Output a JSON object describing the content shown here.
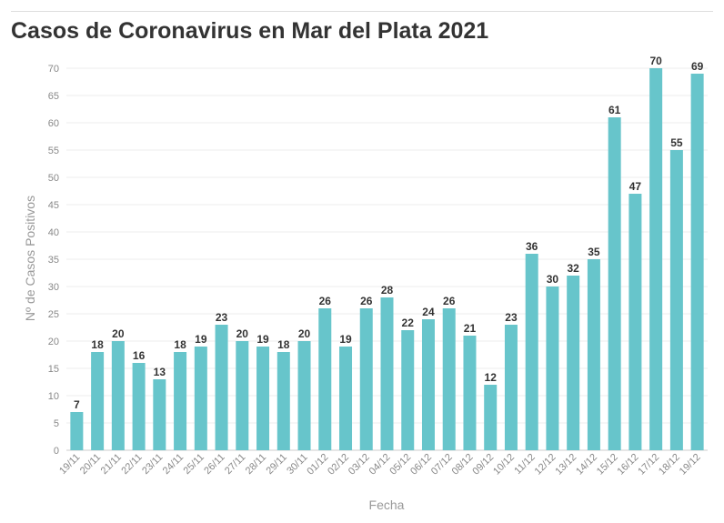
{
  "chart_data": {
    "type": "bar",
    "title": "Casos de Coronavirus en Mar del Plata 2021",
    "xlabel": "Fecha",
    "ylabel": "Nº de Casos Positivos",
    "ylim": [
      0,
      70
    ],
    "yticks": [
      0,
      5,
      10,
      15,
      20,
      25,
      30,
      35,
      40,
      45,
      50,
      55,
      60,
      65,
      70
    ],
    "grid": true,
    "bar_color": "#67c5cb",
    "categories": [
      "19/11",
      "20/11",
      "21/11",
      "22/11",
      "23/11",
      "24/11",
      "25/11",
      "26/11",
      "27/11",
      "28/11",
      "29/11",
      "30/11",
      "01/12",
      "02/12",
      "03/12",
      "04/12",
      "05/12",
      "06/12",
      "07/12",
      "08/12",
      "09/12",
      "10/12",
      "11/12",
      "12/12",
      "13/12",
      "14/12",
      "15/12",
      "16/12",
      "17/12",
      "18/12",
      "19/12"
    ],
    "values": [
      7,
      18,
      20,
      16,
      13,
      18,
      19,
      23,
      20,
      19,
      18,
      20,
      26,
      19,
      26,
      28,
      22,
      24,
      26,
      21,
      12,
      23,
      36,
      30,
      32,
      35,
      61,
      47,
      70,
      55,
      69
    ]
  }
}
